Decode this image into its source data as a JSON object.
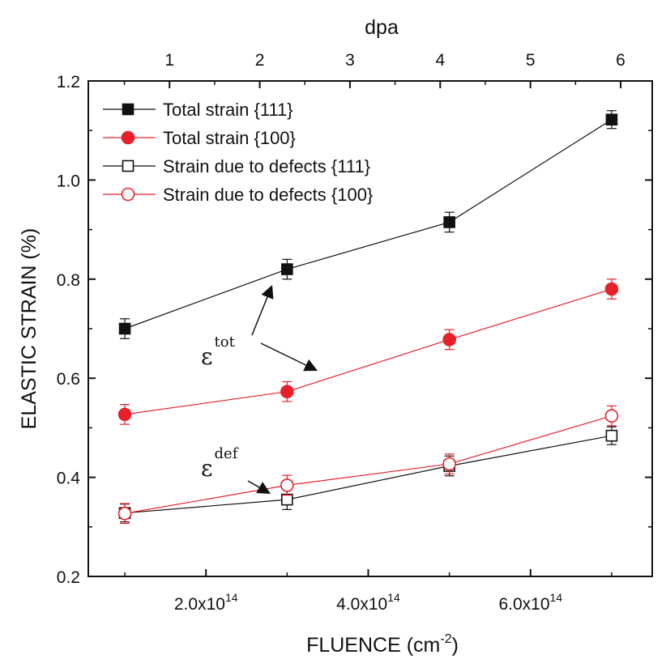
{
  "chart_data": {
    "type": "scatter",
    "xlabel": "FLUENCE (cm",
    "xlabel_sup": "-2",
    "xlabel_end": ")",
    "ylabel": "ELASTIC STRAIN (%)",
    "top_xlabel": "dpa",
    "xlim": [
      0.55,
      7.5
    ],
    "ylim": [
      0.2,
      1.2
    ],
    "top_xlim": [
      0.1,
      6.35
    ],
    "x_ticks": [
      {
        "value": 2,
        "mantissa": "2.0x10",
        "exp": "14"
      },
      {
        "value": 4,
        "mantissa": "4.0x10",
        "exp": "14"
      },
      {
        "value": 6,
        "mantissa": "6.0x10",
        "exp": "14"
      }
    ],
    "x_unit_note": "x values in units of 10^14 cm^-2",
    "y_ticks": [
      {
        "value": 0.2,
        "label": "0.2"
      },
      {
        "value": 0.4,
        "label": "0.4"
      },
      {
        "value": 0.6,
        "label": "0.6"
      },
      {
        "value": 0.8,
        "label": "0.8"
      },
      {
        "value": 1.0,
        "label": "1.0"
      },
      {
        "value": 1.2,
        "label": "1.2"
      }
    ],
    "top_ticks": [
      {
        "value": 1,
        "label": "1"
      },
      {
        "value": 2,
        "label": "2"
      },
      {
        "value": 3,
        "label": "3"
      },
      {
        "value": 4,
        "label": "4"
      },
      {
        "value": 5,
        "label": "5"
      },
      {
        "value": 6,
        "label": "6"
      }
    ],
    "legend_position": "top-left",
    "grid": false,
    "series": [
      {
        "name": "Total strain {111}",
        "color": "#111111",
        "marker": "square",
        "filled": true,
        "x": [
          1,
          3,
          5,
          7
        ],
        "y": [
          0.7,
          0.82,
          0.915,
          1.122
        ],
        "err": [
          0.02,
          0.02,
          0.02,
          0.018
        ]
      },
      {
        "name": "Total strain {100}",
        "color": "#e8202a",
        "marker": "circle",
        "filled": true,
        "x": [
          1,
          3,
          5,
          7
        ],
        "y": [
          0.527,
          0.573,
          0.678,
          0.78
        ],
        "err": [
          0.02,
          0.02,
          0.02,
          0.02
        ]
      },
      {
        "name": "Strain due to defects {111}",
        "color": "#111111",
        "marker": "square",
        "filled": false,
        "x": [
          1,
          3,
          5,
          7
        ],
        "y": [
          0.328,
          0.355,
          0.423,
          0.484
        ],
        "err": [
          0.018,
          0.02,
          0.02,
          0.018
        ]
      },
      {
        "name": "Strain due to defects {100}",
        "color": "#e8202a",
        "marker": "circle",
        "filled": false,
        "x": [
          1,
          3,
          5,
          7
        ],
        "y": [
          0.327,
          0.384,
          0.427,
          0.524
        ],
        "err": [
          0.02,
          0.02,
          0.02,
          0.02
        ]
      }
    ],
    "annotations": [
      {
        "base": "ε",
        "sup": "tot"
      },
      {
        "base": "ε",
        "sup": "def"
      }
    ]
  }
}
